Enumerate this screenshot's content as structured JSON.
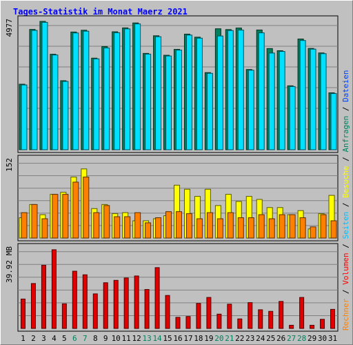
{
  "chart_data": {
    "type": "bar",
    "title": "Tages-Statistik im Monat Maerz 2021",
    "categories": [
      "1",
      "2",
      "3",
      "4",
      "5",
      "6",
      "7",
      "8",
      "9",
      "10",
      "11",
      "12",
      "13",
      "14",
      "15",
      "16",
      "17",
      "18",
      "19",
      "20",
      "21",
      "22",
      "23",
      "24",
      "25",
      "26",
      "27",
      "28",
      "29",
      "30",
      "31"
    ],
    "weekend_days": [
      "6",
      "7",
      "13",
      "14",
      "20",
      "21",
      "27",
      "28"
    ],
    "panels": [
      {
        "name": "requests",
        "ymax_label": "4977",
        "ylim": [
          0,
          4977
        ],
        "legend": [
          {
            "name": "Anfragen",
            "color": "#00805c"
          },
          {
            "name": "Dateien",
            "color": "#0040ff"
          }
        ],
        "series": [
          {
            "name": "Anfragen",
            "color": "#00805c",
            "values": [
              2541,
              4665,
              4977,
              3703,
              2677,
              4565,
              4634,
              3552,
              4004,
              4574,
              4725,
              4917,
              3736,
              4420,
              3664,
              3892,
              4483,
              4365,
              2991,
              4691,
              4660,
              4720,
              3111,
              4644,
              3924,
              3840,
              2479,
              4294,
              3929,
              3754,
              2207
            ]
          },
          {
            "name": "Dateien",
            "color": "#00e0ff",
            "values": [
              2513,
              4628,
              4940,
              3675,
              2649,
              4528,
              4597,
              3524,
              3948,
              4537,
              4687,
              4880,
              3708,
              4383,
              3636,
              3864,
              4446,
              4327,
              2963,
              4411,
              4623,
              4640,
              3083,
              4533,
              3750,
              3812,
              2451,
              4237,
              3901,
              3726,
              2179
            ]
          }
        ]
      },
      {
        "name": "pages-visits",
        "ymax_label": "152",
        "ylim": [
          0,
          152
        ],
        "legend": [
          {
            "name": "Seiten",
            "color": "#00c0ff"
          },
          {
            "name": "Besuche",
            "color": "#ffff00"
          }
        ],
        "series": [
          {
            "name": "Besuche",
            "color": "#ffff00",
            "values": [
              40,
              66,
              46,
              86,
              90,
              120,
              136,
              58,
              66,
              48,
              50,
              34,
              34,
              38,
              44,
              104,
              96,
              82,
              96,
              64,
              86,
              72,
              82,
              76,
              60,
              60,
              46,
              54,
              18,
              48,
              84
            ]
          },
          {
            "name": "Seiten",
            "color": "#ff8000",
            "values": [
              50,
              66,
              38,
              86,
              86,
              110,
              120,
              50,
              64,
              42,
              42,
              50,
              30,
              40,
              52,
              52,
              48,
              38,
              50,
              38,
              50,
              40,
              40,
              46,
              38,
              46,
              46,
              40,
              22,
              46,
              34
            ]
          }
        ]
      },
      {
        "name": "volume",
        "ymax_label": "39.92 MB",
        "ylim": [
          0,
          39.92
        ],
        "legend": [
          {
            "name": "Rechner",
            "color": "#ff8000"
          },
          {
            "name": "Volumen",
            "color": "#ff0000"
          }
        ],
        "series": [
          {
            "name": "Volumen",
            "color": "#e00000",
            "values": [
              14.8,
              22.6,
              31.8,
              39.6,
              12.4,
              28.8,
              27.0,
              17.4,
              23.0,
              24.2,
              25.4,
              26.4,
              19.6,
              30.6,
              16.6,
              5.6,
              6.0,
              12.6,
              15.6,
              7.2,
              12.2,
              4.8,
              13.0,
              9.4,
              8.6,
              13.6,
              1.6,
              15.6,
              1.6,
              4.6,
              9.6
            ]
          }
        ]
      }
    ]
  }
}
